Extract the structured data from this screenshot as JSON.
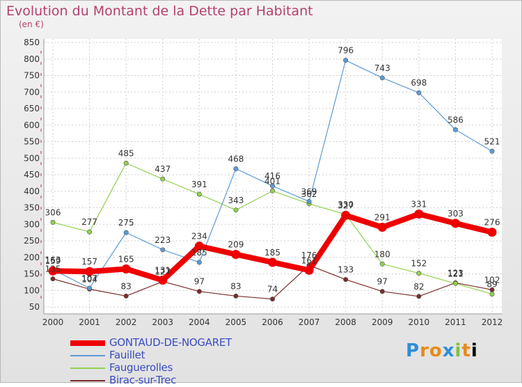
{
  "title": "Evolution du Montant de la Dette par Habitant",
  "subtitle": "(en €)",
  "logo": [
    "P",
    "r",
    "o",
    "x",
    "i",
    "t",
    "i"
  ],
  "chart_data": {
    "type": "line",
    "x": [
      "2000",
      "2001",
      "2002",
      "2003",
      "2004",
      "2005",
      "2006",
      "2007",
      "2008",
      "2009",
      "2010",
      "2011",
      "2012"
    ],
    "ylim": [
      50,
      850
    ],
    "yticks": [
      50,
      100,
      150,
      200,
      250,
      300,
      350,
      400,
      450,
      500,
      550,
      600,
      650,
      700,
      750,
      800,
      850
    ],
    "grid": true,
    "legend_position": "bottom-left",
    "series": [
      {
        "name": "GONTAUD-DE-NOGARET",
        "color": "#ee0000",
        "width": 8,
        "values": [
          159,
          157,
          165,
          131,
          234,
          209,
          185,
          161,
          327,
          291,
          331,
          303,
          276
        ]
      },
      {
        "name": "Fauillet",
        "color": "#5b9bd5",
        "width": 1.2,
        "values": [
          163,
          107,
          275,
          223,
          185,
          468,
          416,
          369,
          796,
          743,
          698,
          586,
          521
        ]
      },
      {
        "name": "Fauguerolles",
        "color": "#92d050",
        "width": 1.2,
        "values": [
          306,
          277,
          485,
          437,
          391,
          343,
          401,
          362,
          330,
          180,
          152,
          121,
          89
        ]
      },
      {
        "name": "Birac-sur-Trec",
        "color": "#7b2c2c",
        "width": 1.2,
        "values": [
          135,
          104,
          83,
          127,
          97,
          83,
          74,
          176,
          133,
          97,
          82,
          123,
          102
        ]
      }
    ]
  }
}
